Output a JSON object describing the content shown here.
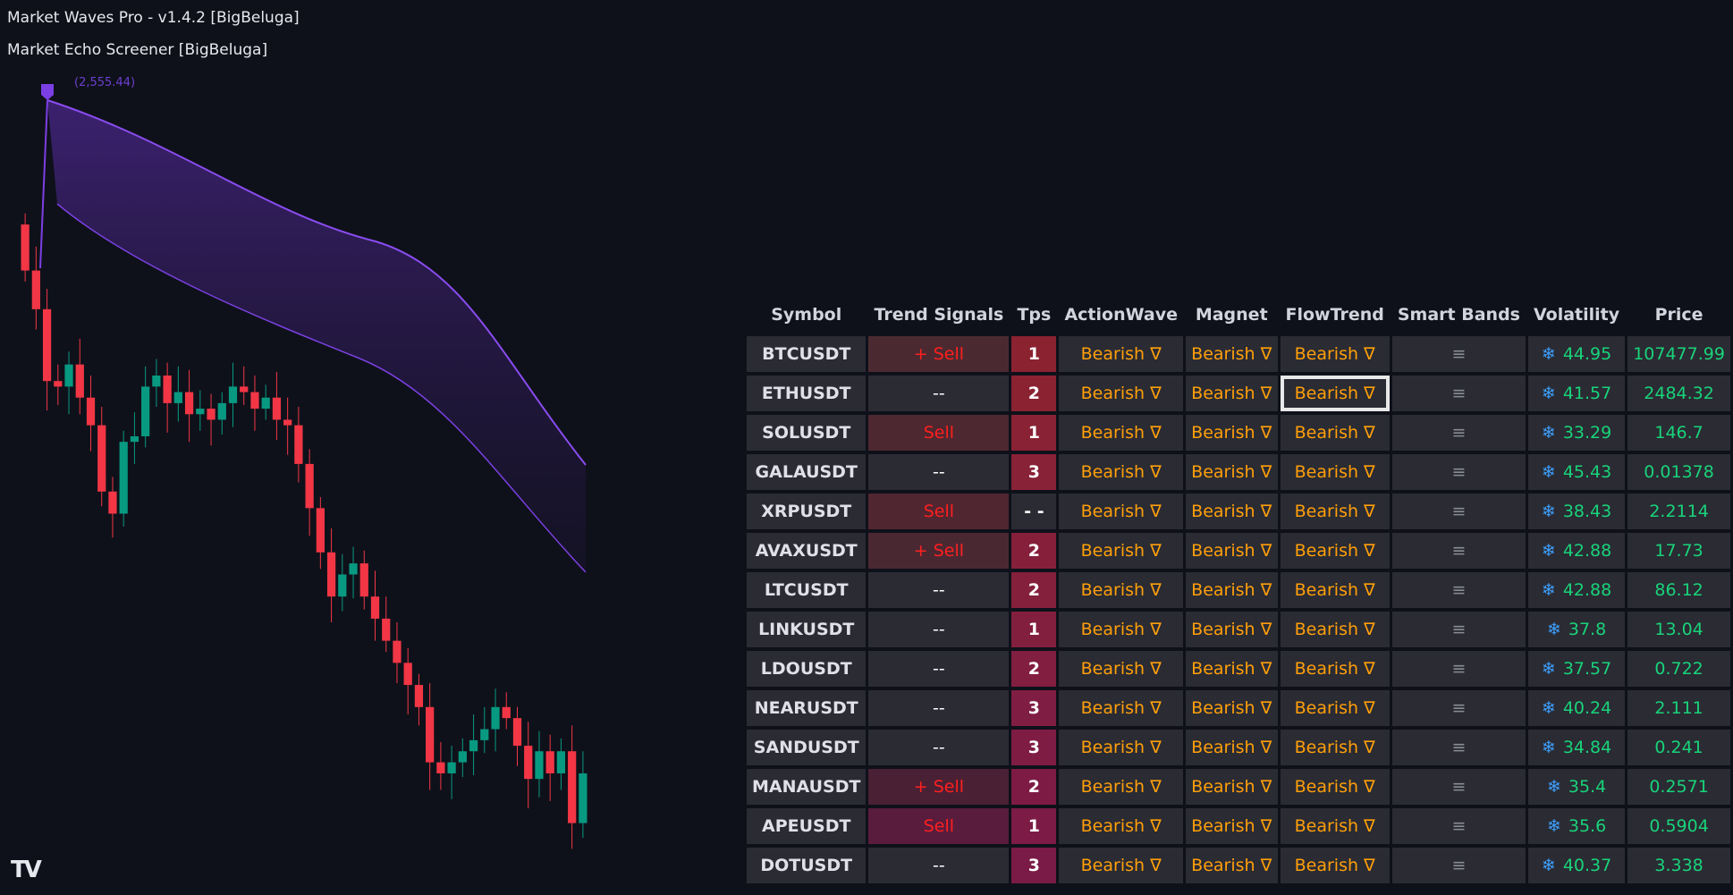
{
  "indicators": [
    "Market Waves Pro - v1.4.2 [BigBeluga]",
    "Market Echo Screener [BigBeluga]"
  ],
  "chart": {
    "wave_label": "(2,555.44)",
    "wave_color": "#7b3fe4",
    "up_color": "#089981",
    "down_color": "#f23645",
    "closes": [
      2462,
      2441,
      2402,
      2399,
      2411,
      2393,
      2378,
      2342,
      2330,
      2369,
      2372,
      2399,
      2405,
      2390,
      2396,
      2384,
      2387,
      2381,
      2390,
      2399,
      2396,
      2387,
      2393,
      2381,
      2378,
      2357,
      2333,
      2309,
      2285,
      2297,
      2303,
      2285,
      2273,
      2261,
      2249,
      2237,
      2225,
      2195,
      2189,
      2195,
      2201,
      2207,
      2213,
      2225,
      2219,
      2204,
      2186,
      2201,
      2189,
      2201,
      2162,
      2189
    ]
  },
  "logo": "TV",
  "table": {
    "headers": [
      "Symbol",
      "Trend Signals",
      "Tps",
      "ActionWave",
      "Magnet",
      "FlowTrend",
      "Smart Bands",
      "Volatility",
      "Price"
    ],
    "selected_row": 1,
    "smart_bands_icon": "≡",
    "volatility_icon": "snowflake-icon",
    "rows": [
      {
        "symbol": "BTCUSDT",
        "signal": "+ Sell",
        "signal_bg": "#4a2a30",
        "tps": "1",
        "tps_bg": "#8b2230",
        "aw": "Bearish ∇",
        "mg": "Bearish ∇",
        "ft": "Bearish ∇",
        "vol": "44.95",
        "price": "107477.99"
      },
      {
        "symbol": "ETHUSDT",
        "signal": "--",
        "signal_bg": "",
        "tps": "2",
        "tps_bg": "#8a2232",
        "aw": "Bearish ∇",
        "mg": "Bearish ∇",
        "ft": "Bearish ∇",
        "vol": "41.57",
        "price": "2484.32"
      },
      {
        "symbol": "SOLUSDT",
        "signal": "Sell",
        "signal_bg": "#4d2830",
        "tps": "1",
        "tps_bg": "#892234",
        "aw": "Bearish ∇",
        "mg": "Bearish ∇",
        "ft": "Bearish ∇",
        "vol": "33.29",
        "price": "146.7"
      },
      {
        "symbol": "GALAUSDT",
        "signal": "--",
        "signal_bg": "",
        "tps": "3",
        "tps_bg": "#882236",
        "aw": "Bearish ∇",
        "mg": "Bearish ∇",
        "ft": "Bearish ∇",
        "vol": "45.43",
        "price": "0.01378"
      },
      {
        "symbol": "XRPUSDT",
        "signal": "Sell",
        "signal_bg": "#502630",
        "tps": "- -",
        "tps_bg": "",
        "aw": "Bearish ∇",
        "mg": "Bearish ∇",
        "ft": "Bearish ∇",
        "vol": "38.43",
        "price": "2.2114"
      },
      {
        "symbol": "AVAXUSDT",
        "signal": "+ Sell",
        "signal_bg": "#4a2832",
        "tps": "2",
        "tps_bg": "#86203a",
        "aw": "Bearish ∇",
        "mg": "Bearish ∇",
        "ft": "Bearish ∇",
        "vol": "42.88",
        "price": "17.73"
      },
      {
        "symbol": "LTCUSDT",
        "signal": "--",
        "signal_bg": "",
        "tps": "2",
        "tps_bg": "#85203c",
        "aw": "Bearish ∇",
        "mg": "Bearish ∇",
        "ft": "Bearish ∇",
        "vol": "42.88",
        "price": "86.12"
      },
      {
        "symbol": "LINKUSDT",
        "signal": "--",
        "signal_bg": "",
        "tps": "1",
        "tps_bg": "#831f3e",
        "aw": "Bearish ∇",
        "mg": "Bearish ∇",
        "ft": "Bearish ∇",
        "vol": "37.8",
        "price": "13.04"
      },
      {
        "symbol": "LDOUSDT",
        "signal": "--",
        "signal_bg": "",
        "tps": "2",
        "tps_bg": "#821e40",
        "aw": "Bearish ∇",
        "mg": "Bearish ∇",
        "ft": "Bearish ∇",
        "vol": "37.57",
        "price": "0.722"
      },
      {
        "symbol": "NEARUSDT",
        "signal": "--",
        "signal_bg": "",
        "tps": "3",
        "tps_bg": "#801d42",
        "aw": "Bearish ∇",
        "mg": "Bearish ∇",
        "ft": "Bearish ∇",
        "vol": "40.24",
        "price": "2.111"
      },
      {
        "symbol": "SANDUSDT",
        "signal": "--",
        "signal_bg": "",
        "tps": "3",
        "tps_bg": "#7f1c44",
        "aw": "Bearish ∇",
        "mg": "Bearish ∇",
        "ft": "Bearish ∇",
        "vol": "34.84",
        "price": "0.241"
      },
      {
        "symbol": "MANAUSDT",
        "signal": "+ Sell",
        "signal_bg": "#4a2034",
        "tps": "2",
        "tps_bg": "#7d1b45",
        "aw": "Bearish ∇",
        "mg": "Bearish ∇",
        "ft": "Bearish ∇",
        "vol": "35.4",
        "price": "0.2571"
      },
      {
        "symbol": "APEUSDT",
        "signal": "Sell",
        "signal_bg": "#5a1c3c",
        "tps": "1",
        "tps_bg": "#7c1b46",
        "aw": "Bearish ∇",
        "mg": "Bearish ∇",
        "ft": "Bearish ∇",
        "vol": "35.6",
        "price": "0.5904"
      },
      {
        "symbol": "DOTUSDT",
        "signal": "--",
        "signal_bg": "",
        "tps": "3",
        "tps_bg": "#7a1a47",
        "aw": "Bearish ∇",
        "mg": "Bearish ∇",
        "ft": "Bearish ∇",
        "vol": "40.37",
        "price": "3.338"
      }
    ]
  }
}
